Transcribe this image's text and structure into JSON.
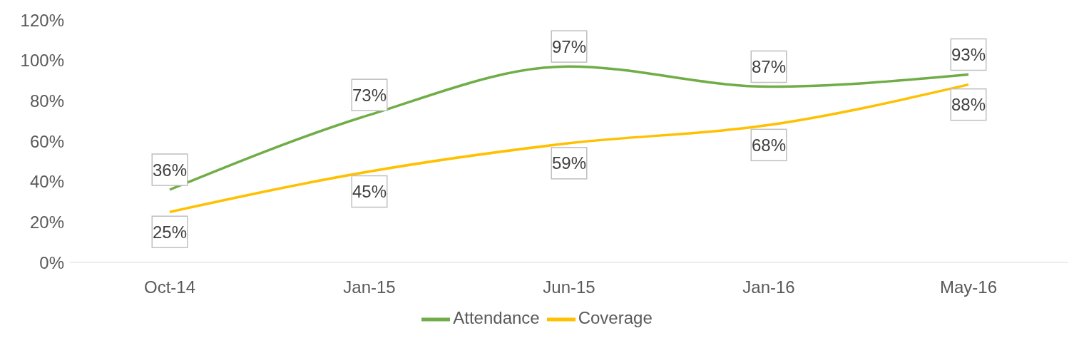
{
  "chart_data": {
    "type": "line",
    "categories": [
      "Oct-14",
      "Jan-15",
      "Jun-15",
      "Jan-16",
      "May-16"
    ],
    "series": [
      {
        "name": "Coverage",
        "color": "#ffc000",
        "values": [
          25,
          45,
          59,
          68,
          88
        ],
        "value_labels": [
          "25%",
          "45%",
          "59%",
          "68%",
          "88%"
        ]
      },
      {
        "name": "Attendance",
        "color": "#70ad47",
        "values": [
          36,
          73,
          97,
          87,
          93
        ],
        "value_labels": [
          "36%",
          "73%",
          "97%",
          "87%",
          "93%"
        ]
      }
    ],
    "ylim": [
      0,
      120
    ],
    "yticks": [
      {
        "value": 0,
        "label": "0%"
      },
      {
        "value": 20,
        "label": "20%"
      },
      {
        "value": 40,
        "label": "40%"
      },
      {
        "value": 60,
        "label": "60%"
      },
      {
        "value": 80,
        "label": "80%"
      },
      {
        "value": 100,
        "label": "100%"
      },
      {
        "value": 120,
        "label": "120%"
      }
    ],
    "grid": false,
    "legend": "bottom"
  }
}
